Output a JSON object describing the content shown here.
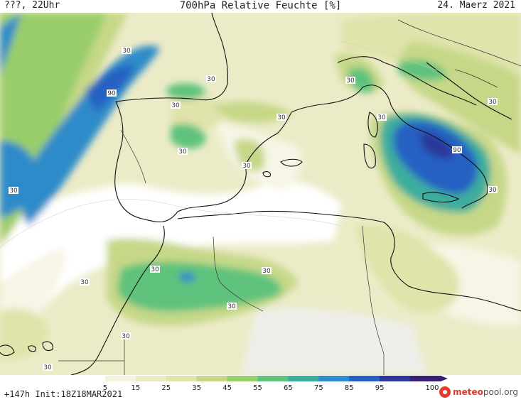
{
  "header": {
    "left": "???, 22Uhr",
    "center": "700hPa Relative Feuchte [%]",
    "right": "24. Maerz 2021"
  },
  "footer": {
    "init_text": "+147h  Init:18Z18MAR2021",
    "logo_main": "meteo",
    "logo_rest": "pool.org"
  },
  "colorbar": {
    "tick_labels": [
      "5",
      "15",
      "25",
      "35",
      "45",
      "55",
      "65",
      "75",
      "85",
      "95",
      "100"
    ],
    "colors": [
      "#ffffff",
      "#f5f3df",
      "#ecebc8",
      "#e0e3aa",
      "#c6d888",
      "#99cd6a",
      "#5fc27d",
      "#3cad9d",
      "#2f8bc9",
      "#2760c2",
      "#29389a",
      "#3a1f73"
    ]
  },
  "contour_labels": [
    "30",
    "30",
    "90",
    "30",
    "30",
    "30",
    "30",
    "30",
    "30",
    "30",
    "30",
    "90",
    "30",
    "30",
    "30",
    "30",
    "30",
    "30",
    "30"
  ]
}
